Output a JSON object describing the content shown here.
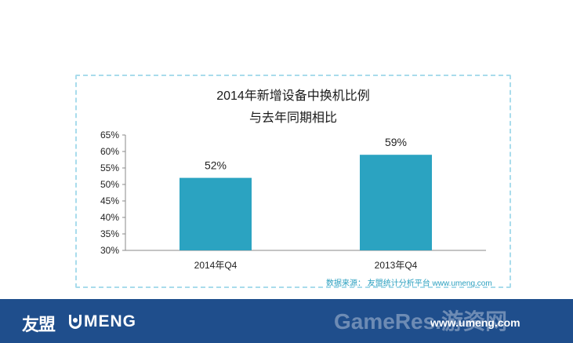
{
  "chart_data": {
    "type": "bar",
    "title": "2014年新增设备中换机比例",
    "subtitle": "与去年同期相比",
    "categories": [
      "2014年Q4",
      "2013年Q4"
    ],
    "values": [
      52,
      59
    ],
    "data_labels": [
      "52%",
      "59%"
    ],
    "ylim": [
      30,
      65
    ],
    "yticks": [
      "30%",
      "35%",
      "40%",
      "45%",
      "50%",
      "55%",
      "60%",
      "65%"
    ],
    "grid": false,
    "bar_color": "#2ba3c1"
  },
  "source_text": "数据来源： 友盟统计分析平台 www.umeng.com",
  "footer": {
    "logo_cn": "友盟",
    "logo_en": "MENG",
    "site": "www.umeng.com",
    "watermark": "GameRes.游资网",
    "background_color": "#1f4e8c"
  }
}
